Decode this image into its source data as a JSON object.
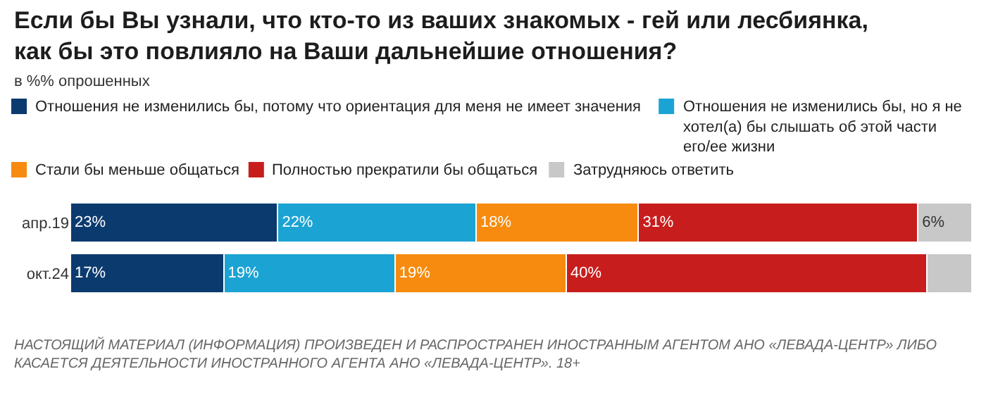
{
  "chart_data": {
    "type": "bar",
    "orientation": "horizontal",
    "stacked": true,
    "title": "Если бы Вы узнали, что кто-то из ваших знакомых - гей или лесбиянка, как бы это повлияло на Ваши дальнейшие отношения?",
    "subtitle": "в %% опрошенных",
    "categories": [
      "апр.19",
      "окт.24"
    ],
    "xlim": [
      0,
      100
    ],
    "tick_labels": "y",
    "legend": "top",
    "series": [
      {
        "name": "Отношения не изменились бы, потому что ориентация для меня не имеет значения",
        "color": "#0b3a6e",
        "values": [
          23,
          17
        ],
        "value_labels": [
          "23%",
          "17%"
        ]
      },
      {
        "name": "Отношения не изменились бы, но я не хотел(а) бы слышать об этой части его/ее жизни",
        "color": "#1ba3d3",
        "values": [
          22,
          19
        ],
        "value_labels": [
          "22%",
          "19%"
        ]
      },
      {
        "name": "Стали бы меньше общаться",
        "color": "#f68b0f",
        "values": [
          18,
          19
        ],
        "value_labels": [
          "18%",
          "19%"
        ]
      },
      {
        "name": "Полностью прекратили бы общаться",
        "color": "#c71e1d",
        "values": [
          31,
          40
        ],
        "value_labels": [
          "31%",
          "40%"
        ]
      },
      {
        "name": "Затрудняюсь ответить",
        "color": "#c8c8c8",
        "values": [
          6,
          5
        ],
        "value_labels": [
          "6%",
          null
        ]
      }
    ],
    "annotations": [
      "НАСТОЯЩИЙ МАТЕРИАЛ (ИНФОРМАЦИЯ) ПРОИЗВЕДЕН И РАСПРОСТРАНЕН ИНОСТРАННЫМ АГЕНТОМ АНО «ЛЕВАДА-ЦЕНТР» ЛИБО КАСАЕТСЯ ДЕЯТЕЛЬНОСТИ ИНОСТРАННОГО АГЕНТА АНО «ЛЕВАДА-ЦЕНТР». 18+"
    ]
  }
}
